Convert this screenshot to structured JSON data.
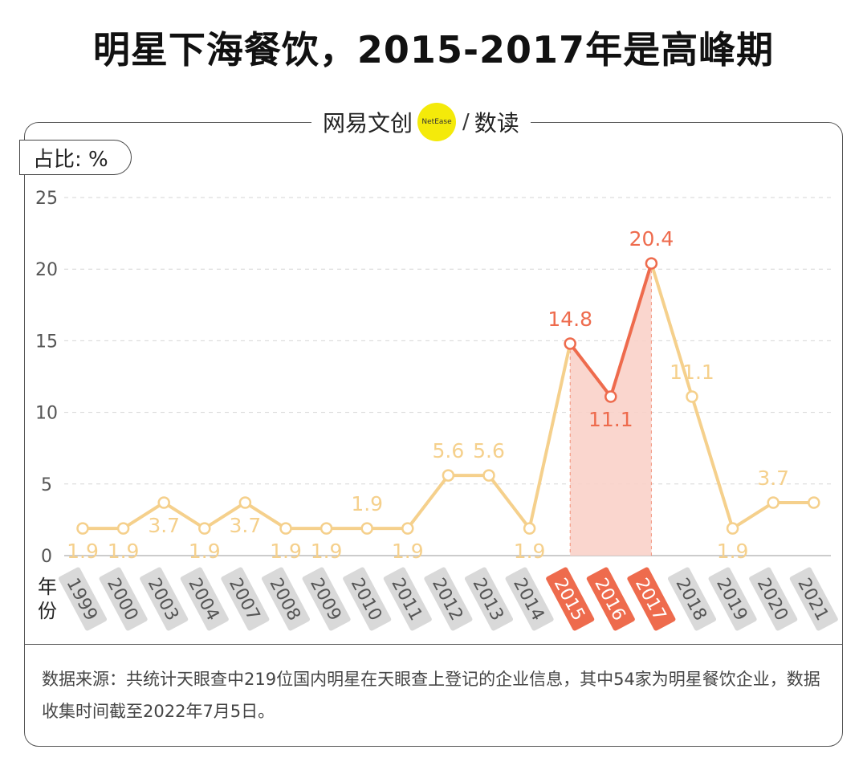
{
  "title": "明星下海餐饮，2015-2017年是高峰期",
  "brand": {
    "name": "网易文创",
    "logo_text": "NetEase",
    "slash": "/",
    "section": "数读"
  },
  "unit_label": "占比: %",
  "x_axis_label": "年份",
  "source_text": "数据来源：共统计天眼查中219位国内明星在天眼查上登记的企业信息，其中54家为明星餐饮企业，数据收集时间截至2022年7月5日。",
  "colors": {
    "base_line": "#f5d08c",
    "highlight_line": "#ee6b4d",
    "highlight_fill": "#f9d2c9",
    "year_tag_gray": "#d9d9d9",
    "year_tag_highlight": "#ee6b4d"
  },
  "chart_data": {
    "type": "line",
    "title": "明星下海餐饮，2015-2017年是高峰期",
    "xlabel": "年份",
    "ylabel": "占比: %",
    "ylim": [
      0,
      25
    ],
    "yticks": [
      0,
      5,
      10,
      15,
      20,
      25
    ],
    "grid": true,
    "categories": [
      "1999",
      "2000",
      "2003",
      "2004",
      "2007",
      "2008",
      "2009",
      "2010",
      "2011",
      "2012",
      "2013",
      "2014",
      "2015",
      "2016",
      "2017",
      "2018",
      "2019",
      "2020",
      "2021"
    ],
    "values": [
      1.9,
      1.9,
      3.7,
      1.9,
      3.7,
      1.9,
      1.9,
      1.9,
      1.9,
      5.6,
      5.6,
      1.9,
      14.8,
      11.1,
      20.4,
      11.1,
      1.9,
      3.7,
      3.7
    ],
    "data_labels": [
      "1.9",
      "1.9",
      "3.7",
      "1.9",
      "3.7",
      "1.9",
      "1.9",
      "1.9",
      "1.9",
      "5.6",
      "5.6",
      "1.9",
      "14.8",
      "11.1",
      "20.4",
      "11.1",
      "1.9",
      "3.7",
      ""
    ],
    "highlight_range": [
      "2015",
      "2017"
    ]
  }
}
